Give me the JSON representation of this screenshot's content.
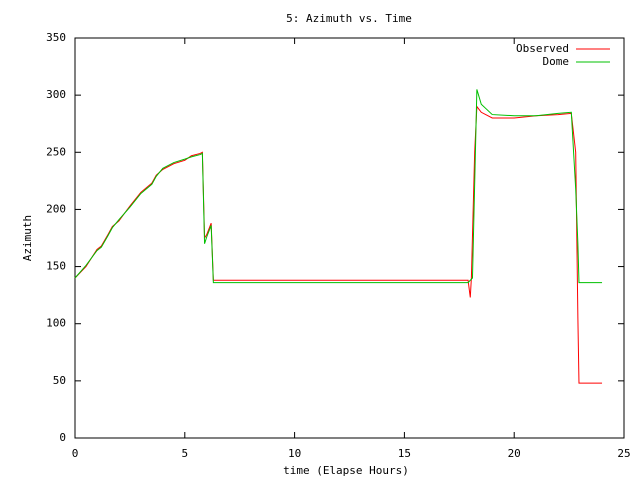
{
  "chart_data": {
    "type": "line",
    "title": "5: Azimuth vs. Time",
    "x_label": "time (Elapse Hours)",
    "y_label": "Azimuth",
    "xlim": [
      0,
      25
    ],
    "xticks": [
      0,
      5,
      10,
      15,
      20,
      25
    ],
    "ylim": [
      0,
      350
    ],
    "yticks": [
      0,
      50,
      100,
      150,
      200,
      250,
      300,
      350
    ],
    "legend": "top-right",
    "series": [
      {
        "name": "Observed",
        "color": "#ff0000",
        "x": [
          0,
          0.5,
          1,
          1.2,
          1.5,
          1.7,
          2,
          2.5,
          3,
          3.5,
          3.7,
          4,
          4.5,
          5,
          5.3,
          5.7,
          5.8,
          5.9,
          6.0,
          6.2,
          6.3,
          10,
          15,
          17.9,
          18.0,
          18.05,
          18.2,
          18.3,
          18.5,
          19,
          20,
          21,
          22,
          22.6,
          22.8,
          22.9,
          22.95,
          24
        ],
        "values": [
          140,
          150,
          165,
          168,
          178,
          185,
          190,
          203,
          215,
          223,
          230,
          235,
          240,
          243,
          247,
          249,
          250,
          175,
          178,
          188,
          138,
          138,
          138,
          138,
          123,
          140,
          250,
          290,
          285,
          280,
          280,
          282,
          283,
          284,
          250,
          105,
          48,
          48
        ]
      },
      {
        "name": "Dome",
        "color": "#00c000",
        "x": [
          0,
          0.5,
          1,
          1.2,
          1.5,
          1.7,
          2,
          2.5,
          3,
          3.5,
          3.7,
          4,
          4.5,
          5,
          5.3,
          5.7,
          5.8,
          5.9,
          6.0,
          6.2,
          6.3,
          10,
          15,
          17.9,
          18.1,
          18.3,
          18.5,
          19,
          20,
          21,
          22,
          22.6,
          22.8,
          22.9,
          22.95,
          24
        ],
        "values": [
          140,
          151,
          164,
          167,
          177,
          184,
          191,
          202,
          214,
          222,
          229,
          236,
          241,
          244,
          246,
          248,
          249,
          170,
          176,
          186,
          136,
          136,
          136,
          136,
          140,
          305,
          292,
          283,
          282,
          282,
          284,
          285,
          218,
          170,
          136,
          136
        ]
      }
    ]
  }
}
